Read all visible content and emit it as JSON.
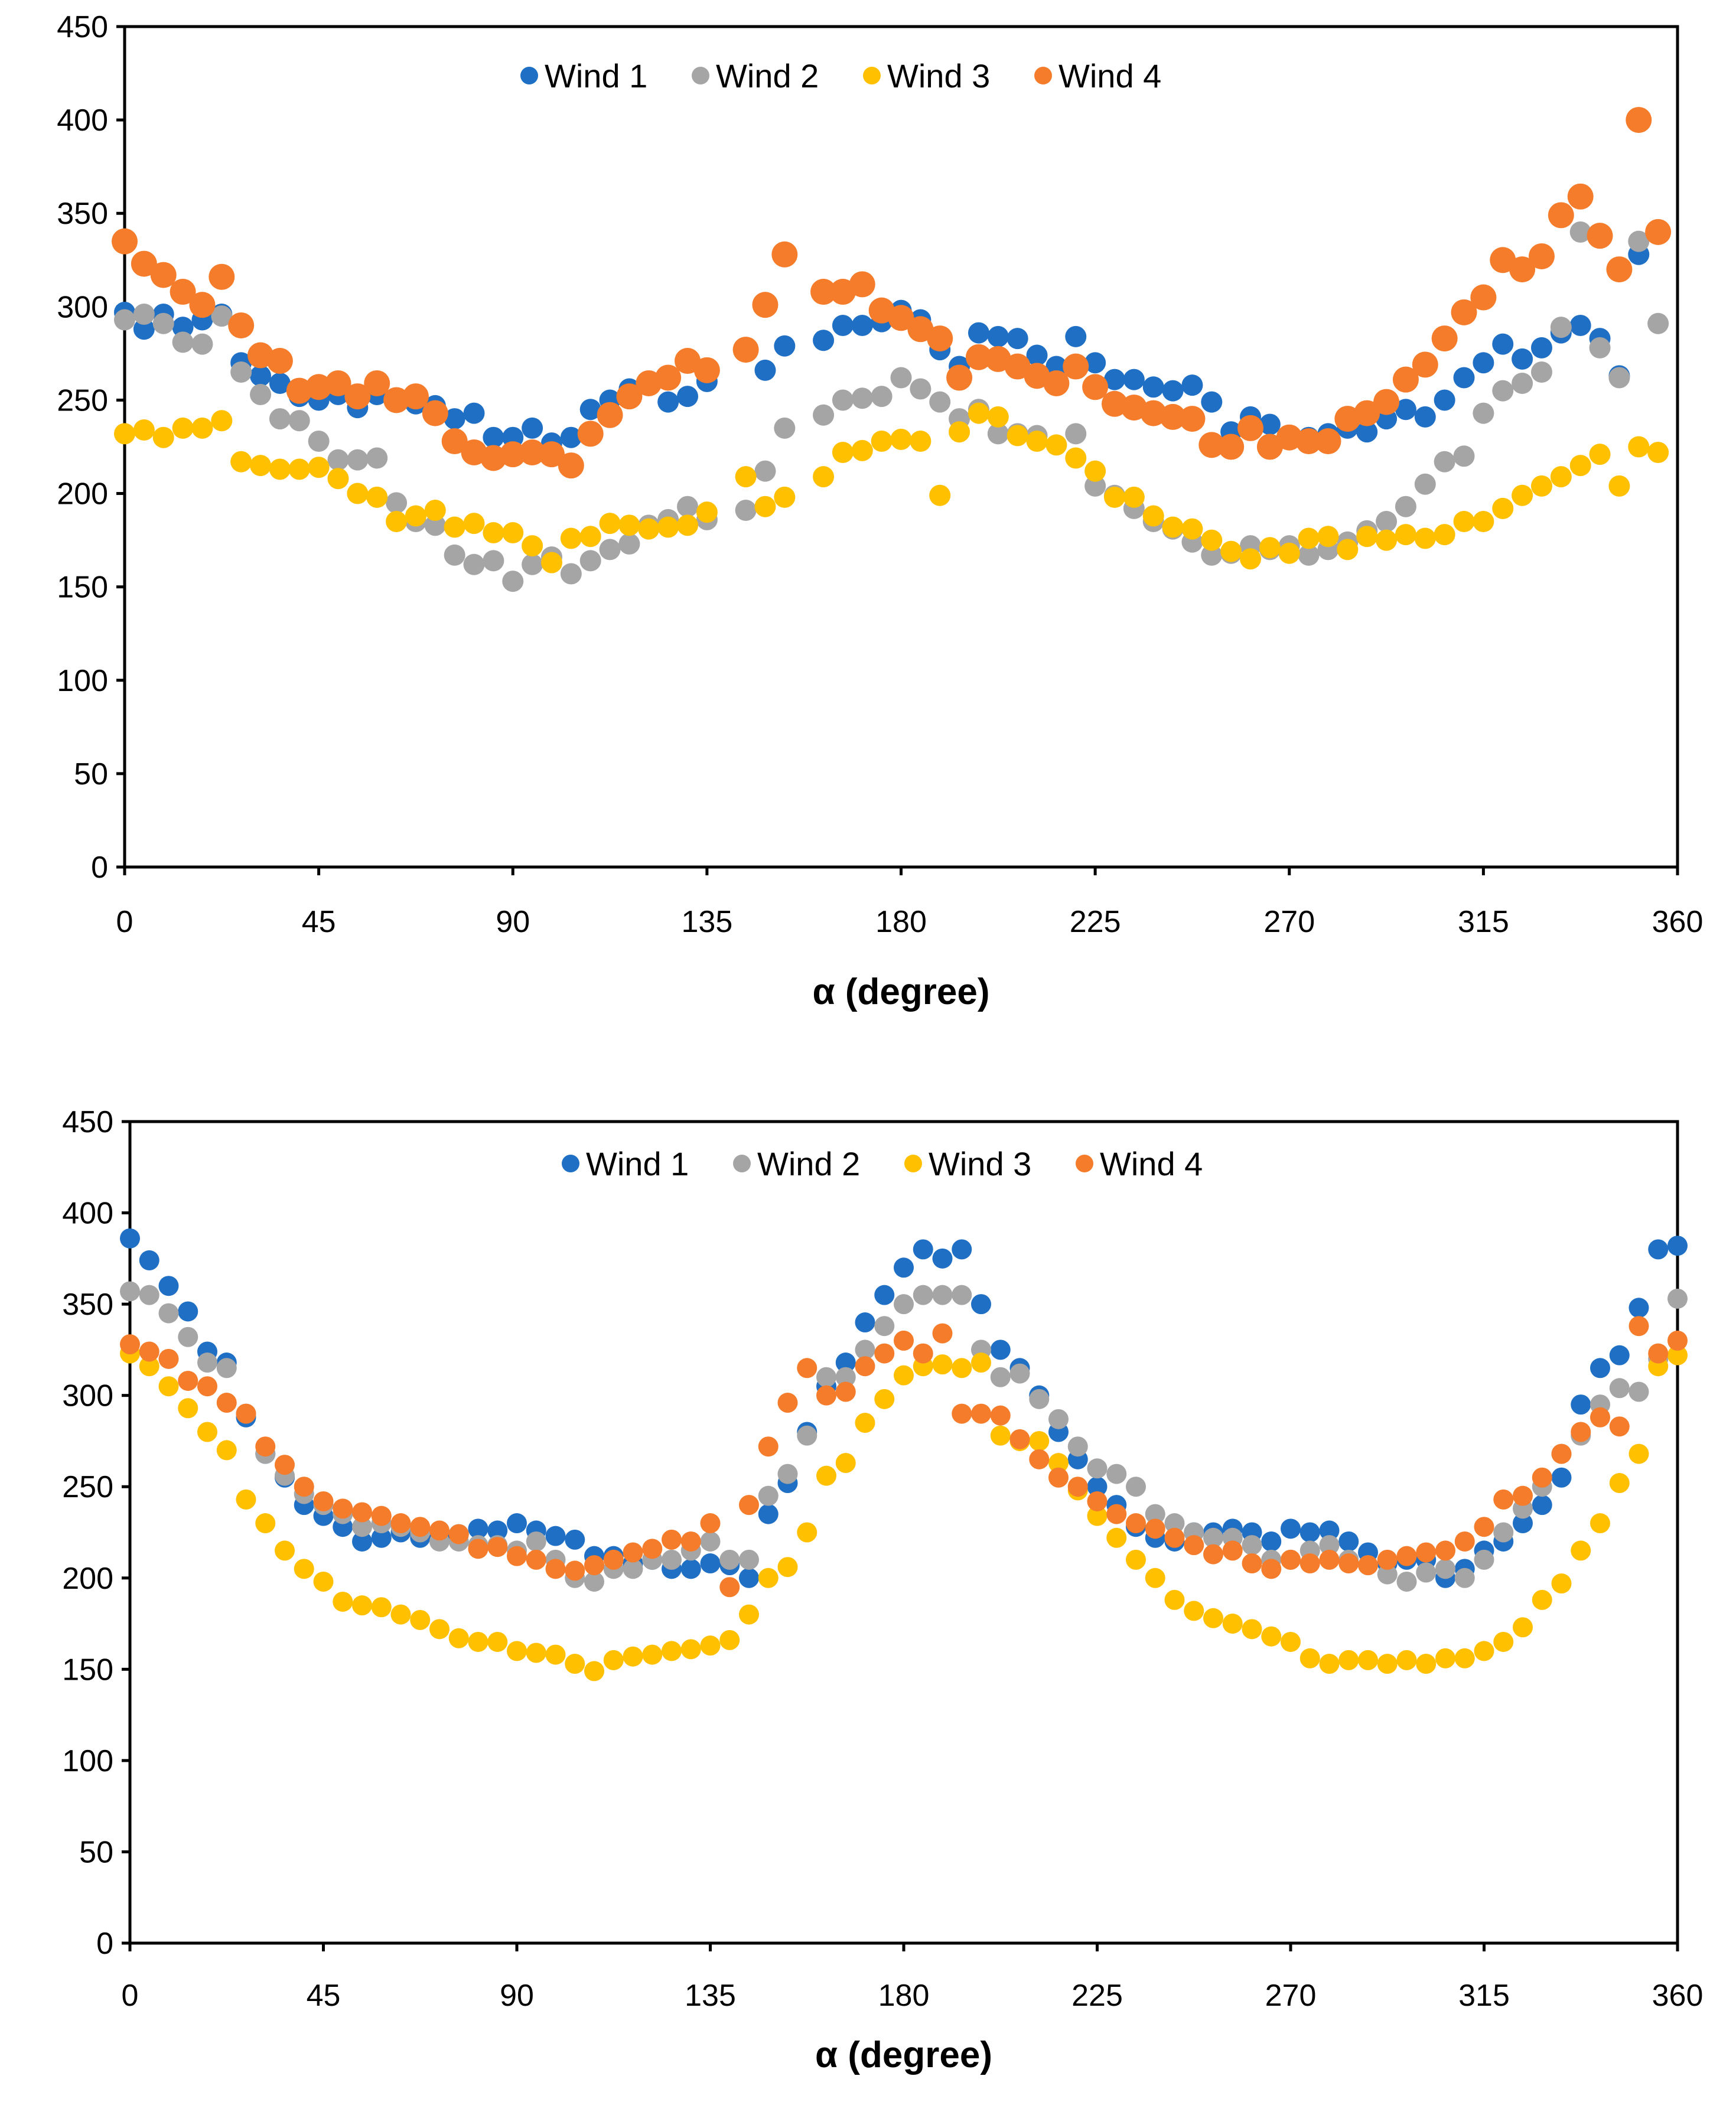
{
  "chart_data": [
    {
      "type": "scatter",
      "title": "",
      "xlabel": "α (degree)",
      "ylabel": "",
      "xlim": [
        0,
        360
      ],
      "ylim": [
        0,
        450
      ],
      "xticks": [
        "0",
        "45",
        "90",
        "135",
        "180",
        "225",
        "270",
        "315",
        "360"
      ],
      "yticks": [
        "0",
        "50",
        "100",
        "150",
        "200",
        "250",
        "300",
        "350",
        "400",
        "450"
      ],
      "legend_position": "top-center",
      "x_start": 0,
      "x_step": 4.5,
      "series": [
        {
          "name": "Wind 1",
          "color": "#1F6FC5",
          "values": [
            297,
            288,
            296,
            289,
            293,
            296,
            270,
            263,
            259,
            252,
            250,
            253,
            246,
            253,
            250,
            248,
            247,
            240,
            243,
            230,
            230,
            235,
            227,
            230,
            245,
            250,
            256,
            259,
            249,
            252,
            260,
            null,
            277,
            266,
            279,
            null,
            282,
            290,
            290,
            292,
            298,
            293,
            277,
            268,
            286,
            284,
            283,
            274,
            268,
            284,
            270,
            261,
            261,
            257,
            255,
            258,
            249,
            233,
            241,
            237,
            230,
            230,
            232,
            235,
            233,
            240,
            245,
            241,
            250,
            262,
            270,
            280,
            272,
            278,
            286,
            290,
            283,
            263,
            328,
            null
          ]
        },
        {
          "name": "Wind 2",
          "color": "#A5A5A5",
          "values": [
            293,
            296,
            291,
            281,
            280,
            295,
            265,
            253,
            240,
            239,
            228,
            218,
            218,
            219,
            195,
            185,
            183,
            167,
            162,
            164,
            153,
            162,
            166,
            157,
            164,
            170,
            173,
            183,
            186,
            193,
            186,
            null,
            191,
            212,
            235,
            null,
            242,
            250,
            251,
            252,
            262,
            256,
            249,
            240,
            245,
            232,
            232,
            231,
            null,
            232,
            204,
            199,
            192,
            185,
            181,
            174,
            167,
            168,
            172,
            170,
            172,
            167,
            170,
            174,
            180,
            185,
            193,
            205,
            217,
            220,
            243,
            255,
            259,
            265,
            289,
            340,
            278,
            262,
            335,
            291
          ]
        },
        {
          "name": "Wind 3",
          "color": "#FFC000",
          "values": [
            232,
            234,
            230,
            235,
            235,
            239,
            217,
            215,
            213,
            213,
            214,
            208,
            200,
            198,
            185,
            188,
            191,
            182,
            184,
            179,
            179,
            172,
            163,
            176,
            177,
            184,
            183,
            181,
            182,
            183,
            190,
            null,
            209,
            193,
            198,
            null,
            209,
            222,
            223,
            228,
            229,
            228,
            199,
            233,
            243,
            241,
            231,
            228,
            226,
            219,
            212,
            198,
            198,
            188,
            182,
            181,
            175,
            169,
            165,
            171,
            168,
            176,
            177,
            170,
            177,
            175,
            178,
            176,
            178,
            185,
            185,
            192,
            199,
            204,
            209,
            215,
            221,
            204,
            225,
            222
          ]
        },
        {
          "name": "Wind 4",
          "color": "#F47C2A",
          "values": [
            335,
            323,
            317,
            308,
            301,
            316,
            290,
            274,
            271,
            255,
            257,
            259,
            252,
            259,
            250,
            252,
            243,
            228,
            222,
            219,
            221,
            222,
            221,
            215,
            232,
            242,
            252,
            259,
            262,
            271,
            266,
            null,
            277,
            301,
            328,
            null,
            308,
            308,
            312,
            298,
            294,
            288,
            283,
            262,
            273,
            272,
            268,
            263,
            259,
            268,
            257,
            248,
            246,
            243,
            241,
            240,
            226,
            225,
            235,
            225,
            230,
            228,
            228,
            240,
            243,
            249,
            261,
            269,
            283,
            297,
            305,
            325,
            320,
            327,
            349,
            359,
            338,
            320,
            400,
            340
          ]
        }
      ]
    },
    {
      "type": "scatter",
      "title": "",
      "xlabel": "α (degree)",
      "ylabel": "",
      "xlim": [
        0,
        360
      ],
      "ylim": [
        0,
        450
      ],
      "xticks": [
        "0",
        "45",
        "90",
        "135",
        "180",
        "225",
        "270",
        "315",
        "360"
      ],
      "yticks": [
        "0",
        "50",
        "100",
        "150",
        "200",
        "250",
        "300",
        "350",
        "400",
        "450"
      ],
      "legend_position": "top-center",
      "x_start": 0,
      "x_step": 4.5,
      "series": [
        {
          "name": "Wind 1",
          "color": "#1F6FC5",
          "values": [
            386,
            374,
            360,
            346,
            324,
            318,
            288,
            268,
            255,
            240,
            234,
            228,
            220,
            222,
            225,
            222,
            222,
            224,
            227,
            226,
            230,
            226,
            223,
            221,
            212,
            212,
            208,
            210,
            205,
            205,
            208,
            207,
            200,
            235,
            252,
            280,
            305,
            318,
            340,
            355,
            370,
            380,
            375,
            380,
            350,
            325,
            315,
            300,
            280,
            265,
            250,
            240,
            228,
            222,
            220,
            225,
            225,
            227,
            225,
            220,
            227,
            225,
            226,
            220,
            214,
            208,
            210,
            210,
            200,
            205,
            215,
            220,
            230,
            240,
            255,
            295,
            315,
            322,
            348,
            380,
            382
          ]
        },
        {
          "name": "Wind 2",
          "color": "#A5A5A5",
          "values": [
            357,
            355,
            345,
            332,
            318,
            315,
            290,
            268,
            256,
            246,
            240,
            235,
            228,
            230,
            228,
            225,
            220,
            220,
            218,
            218,
            215,
            220,
            210,
            200,
            198,
            205,
            205,
            210,
            210,
            215,
            220,
            210,
            210,
            245,
            257,
            278,
            310,
            310,
            325,
            338,
            350,
            355,
            355,
            355,
            325,
            310,
            312,
            298,
            287,
            272,
            260,
            257,
            250,
            235,
            230,
            225,
            222,
            222,
            218,
            210,
            210,
            215,
            218,
            210,
            207,
            202,
            198,
            203,
            205,
            200,
            210,
            225,
            238,
            250,
            268,
            278,
            295,
            304,
            302,
            320,
            353
          ]
        },
        {
          "name": "Wind 3",
          "color": "#FFC000",
          "values": [
            323,
            316,
            305,
            293,
            280,
            270,
            243,
            230,
            215,
            205,
            198,
            187,
            185,
            184,
            180,
            177,
            172,
            167,
            165,
            165,
            160,
            159,
            158,
            153,
            149,
            155,
            157,
            158,
            160,
            161,
            163,
            166,
            180,
            200,
            206,
            225,
            256,
            263,
            285,
            298,
            311,
            316,
            317,
            315,
            318,
            278,
            275,
            275,
            263,
            248,
            234,
            222,
            210,
            200,
            188,
            182,
            178,
            175,
            172,
            168,
            165,
            156,
            153,
            155,
            155,
            153,
            155,
            153,
            156,
            156,
            160,
            165,
            173,
            188,
            197,
            215,
            230,
            252,
            268,
            316,
            322
          ]
        },
        {
          "name": "Wind 4",
          "color": "#F47C2A",
          "values": [
            328,
            324,
            320,
            308,
            305,
            296,
            290,
            272,
            262,
            250,
            242,
            238,
            236,
            234,
            230,
            228,
            226,
            224,
            216,
            217,
            212,
            210,
            205,
            204,
            207,
            210,
            214,
            216,
            221,
            220,
            230,
            195,
            240,
            272,
            296,
            315,
            300,
            302,
            316,
            323,
            330,
            323,
            334,
            290,
            290,
            289,
            276,
            265,
            255,
            250,
            242,
            235,
            230,
            227,
            222,
            218,
            213,
            215,
            208,
            205,
            210,
            208,
            210,
            208,
            207,
            210,
            212,
            214,
            215,
            220,
            228,
            243,
            245,
            255,
            268,
            280,
            288,
            283,
            338,
            323,
            330
          ]
        }
      ]
    }
  ]
}
